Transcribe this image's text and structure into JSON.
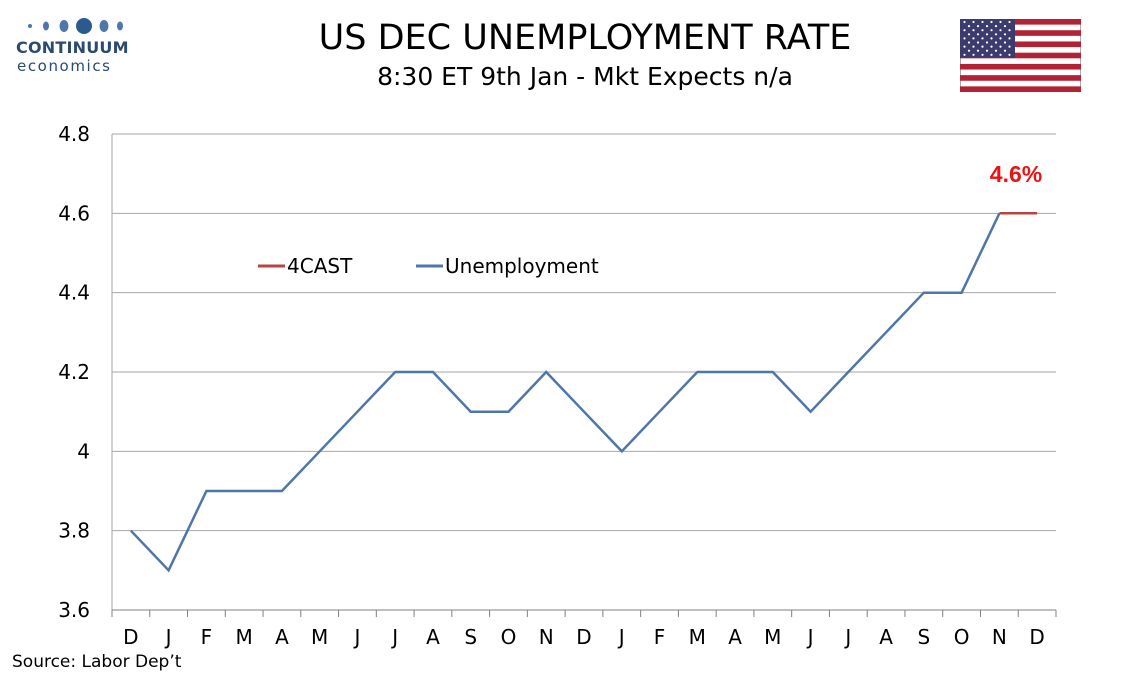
{
  "brand": {
    "name": "CONTINUUM",
    "tagline": "economics"
  },
  "header": {
    "title": "US DEC UNEMPLOYMENT RATE",
    "subtitle": "8:30 ET 9th Jan - Mkt Expects n/a"
  },
  "flag_icon": "us-flag-icon",
  "source": "Source: Labor Dep’t",
  "colors": {
    "series_unemployment": "#4f76a8",
    "series_4cast": "#b7453f",
    "highlight_label": "#ee1111",
    "grid": "#a6a6a6",
    "brand": "#2a4a6e"
  },
  "chart_data": {
    "type": "line",
    "title": "",
    "xlabel": "",
    "ylabel": "",
    "categories": [
      "D",
      "J",
      "F",
      "M",
      "A",
      "M",
      "J",
      "J",
      "A",
      "S",
      "O",
      "N",
      "D",
      "J",
      "F",
      "M",
      "A",
      "M",
      "J",
      "J",
      "A",
      "S",
      "O",
      "N",
      "D"
    ],
    "ylim": [
      3.6,
      4.8
    ],
    "yticks": [
      "3.6",
      "3.8",
      "4",
      "4.2",
      "4.4",
      "4.6",
      "4.8"
    ],
    "grid": "horizontal",
    "legend": {
      "placement": "inside-upper-left",
      "entries": [
        "4CAST",
        "Unemployment"
      ]
    },
    "series": [
      {
        "name": "Unemployment",
        "values": [
          3.8,
          3.7,
          3.9,
          3.9,
          3.9,
          4.0,
          4.1,
          4.2,
          4.2,
          4.1,
          4.1,
          4.2,
          4.1,
          4.0,
          4.1,
          4.2,
          4.2,
          4.2,
          4.1,
          4.2,
          4.3,
          4.4,
          4.4,
          4.6,
          null
        ]
      },
      {
        "name": "4CAST",
        "values": [
          null,
          null,
          null,
          null,
          null,
          null,
          null,
          null,
          null,
          null,
          null,
          null,
          null,
          null,
          null,
          null,
          null,
          null,
          null,
          null,
          null,
          null,
          null,
          4.6,
          4.6
        ]
      }
    ],
    "annotation": {
      "text": "4.6%",
      "value": 4.6
    }
  }
}
